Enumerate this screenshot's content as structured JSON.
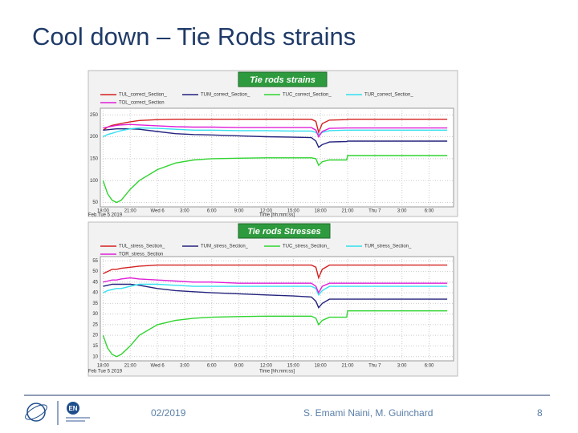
{
  "slide": {
    "title": "Cool down – Tie Rods strains",
    "footer": {
      "date": "02/2019",
      "authors": "S. Emami Naini, M. Guinchard",
      "page": "8"
    },
    "logo_text": "EN"
  },
  "chart_data": [
    {
      "type": "line",
      "title": "Tie rods strains",
      "x_label": "Time [hh:mm:ss]",
      "start_label": "Feb Tue 5 2019",
      "x": [
        0,
        0.5,
        1,
        1.5,
        2,
        3,
        4,
        6,
        8,
        10,
        12,
        15,
        18,
        21,
        23,
        23.5,
        23.8,
        24.2,
        25,
        26.9,
        27,
        30,
        33,
        36,
        38
      ],
      "xlim": [
        -0.3,
        38.7
      ],
      "xticks": [
        {
          "value": 0,
          "label": "18:00"
        },
        {
          "value": 3,
          "label": "21:00"
        },
        {
          "value": 6,
          "label": "Wed 6"
        },
        {
          "value": 9,
          "label": "3:00"
        },
        {
          "value": 12,
          "label": "6:00"
        },
        {
          "value": 15,
          "label": "9:00"
        },
        {
          "value": 18,
          "label": "12:00"
        },
        {
          "value": 21,
          "label": "15:00"
        },
        {
          "value": 24,
          "label": "18:00"
        },
        {
          "value": 27,
          "label": "21:00"
        },
        {
          "value": 30,
          "label": "Thu 7"
        },
        {
          "value": 33,
          "label": "3:00"
        },
        {
          "value": 36,
          "label": "6:00"
        }
      ],
      "ylim": [
        40,
        265
      ],
      "yticks": [
        50,
        100,
        150,
        200,
        250
      ],
      "grid": true,
      "series": [
        {
          "name": "TUL_correct_Section_",
          "color": "#d42020",
          "values": [
            215,
            222,
            226,
            228,
            230,
            234,
            237,
            239,
            240,
            240,
            240,
            240,
            240,
            240,
            240,
            235,
            210,
            230,
            238,
            239,
            240,
            240,
            240,
            240,
            240
          ]
        },
        {
          "name": "TUM_correct_Section_",
          "color": "#23237e",
          "values": [
            215,
            216,
            217,
            218,
            218,
            218,
            217,
            212,
            207,
            205,
            204,
            202,
            200,
            199,
            198,
            190,
            176,
            182,
            188,
            189,
            190,
            190,
            190,
            190,
            190
          ]
        },
        {
          "name": "TUC_correct_Section_",
          "color": "#2fd42f",
          "values": [
            100,
            70,
            55,
            50,
            55,
            80,
            100,
            125,
            140,
            147,
            150,
            151,
            152,
            152,
            152,
            150,
            135,
            143,
            147,
            147,
            157,
            157,
            157,
            157,
            157
          ]
        },
        {
          "name": "TUR_correct_Section_",
          "color": "#33dff0",
          "values": [
            200,
            205,
            208,
            211,
            214,
            218,
            220,
            219,
            217,
            215,
            215,
            214,
            214,
            213,
            213,
            210,
            205,
            210,
            214,
            215,
            215,
            215,
            215,
            215,
            215
          ]
        },
        {
          "name": "TOL_correct_Section",
          "color": "#e020d8",
          "values": [
            220,
            222,
            224,
            226,
            227,
            228,
            227,
            225,
            223,
            222,
            222,
            221,
            221,
            221,
            221,
            215,
            200,
            212,
            219,
            220,
            220,
            220,
            220,
            220,
            220
          ]
        }
      ]
    },
    {
      "type": "line",
      "title": "Tie rods Stresses",
      "x_label": "Time [hh:mm:ss]",
      "start_label": "Feb Tue 5 2019",
      "x": [
        0,
        0.5,
        1,
        1.5,
        2,
        3,
        4,
        6,
        8,
        10,
        12,
        15,
        18,
        21,
        23,
        23.5,
        23.8,
        24.2,
        25,
        26.9,
        27,
        30,
        33,
        36,
        38
      ],
      "xlim": [
        -0.3,
        38.7
      ],
      "xticks": [
        {
          "value": 0,
          "label": "18:00"
        },
        {
          "value": 3,
          "label": "21:00"
        },
        {
          "value": 6,
          "label": "Wed 6"
        },
        {
          "value": 9,
          "label": "3:00"
        },
        {
          "value": 12,
          "label": "6:00"
        },
        {
          "value": 15,
          "label": "9:00"
        },
        {
          "value": 18,
          "label": "12:00"
        },
        {
          "value": 21,
          "label": "15:00"
        },
        {
          "value": 24,
          "label": "18:00"
        },
        {
          "value": 27,
          "label": "21:00"
        },
        {
          "value": 30,
          "label": "Thu 7"
        },
        {
          "value": 33,
          "label": "3:00"
        },
        {
          "value": 36,
          "label": "6:00"
        }
      ],
      "ylim": [
        8,
        57
      ],
      "yticks": [
        10,
        15,
        20,
        25,
        30,
        35,
        40,
        45,
        50,
        55
      ],
      "grid": true,
      "series": [
        {
          "name": "TUL_stress_Section_",
          "color": "#d42020",
          "values": [
            49,
            50,
            51,
            51,
            51.5,
            52,
            52.5,
            53,
            53,
            53,
            53,
            53,
            53,
            53,
            53,
            52,
            47,
            51,
            53,
            53,
            53,
            53,
            53,
            53,
            53
          ]
        },
        {
          "name": "TUM_stress_Section_",
          "color": "#23237e",
          "values": [
            43,
            43.5,
            44,
            44,
            44,
            44,
            43.5,
            42,
            41,
            40.5,
            40,
            39.5,
            39,
            38.5,
            38,
            36,
            33,
            35,
            37,
            37,
            37,
            37,
            37,
            37,
            37
          ]
        },
        {
          "name": "TUC_stress_Section_",
          "color": "#2fd42f",
          "values": [
            20,
            14,
            11,
            10,
            11,
            15,
            20,
            25,
            27,
            28,
            28.5,
            28.8,
            29,
            29,
            29,
            28,
            25,
            27,
            28.5,
            28.5,
            31.5,
            31.5,
            31.5,
            31.5,
            31.5
          ]
        },
        {
          "name": "TUR_stress_Section_",
          "color": "#33dff0",
          "values": [
            40,
            41,
            41.5,
            42,
            42,
            43,
            44,
            44,
            43.5,
            43,
            43,
            43,
            43,
            43,
            43,
            42,
            39,
            41,
            43,
            43,
            43,
            43,
            43,
            43,
            43
          ]
        },
        {
          "name": "TOR_stress_Section",
          "color": "#e020d8",
          "values": [
            45,
            45.5,
            46,
            46,
            46.5,
            47,
            46.5,
            46,
            45.5,
            45,
            45,
            44.5,
            44.5,
            44.5,
            44.5,
            43,
            40,
            43,
            44.5,
            44.5,
            44.5,
            44.5,
            44.5,
            44.5,
            44.5
          ]
        }
      ]
    }
  ]
}
